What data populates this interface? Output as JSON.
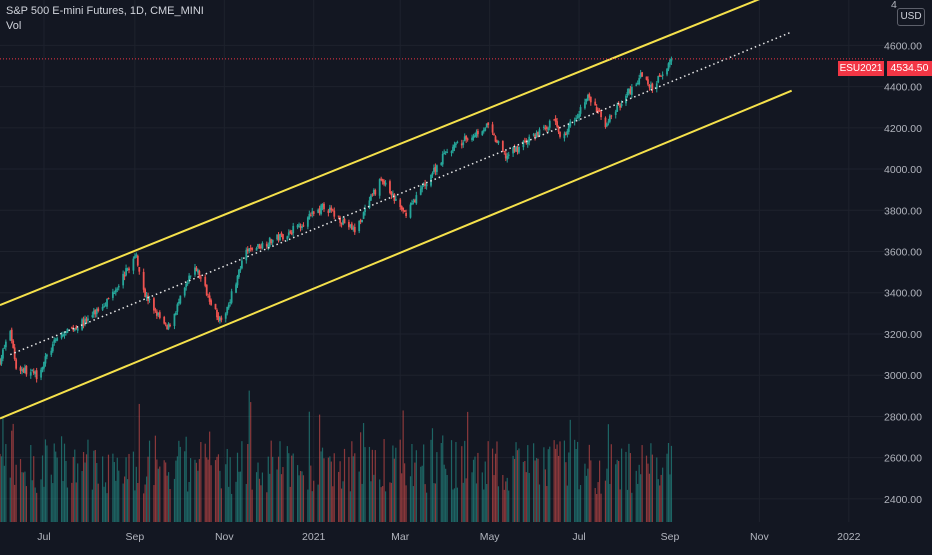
{
  "header": {
    "title": "S&P 500 E-mini Futures, 1D, CME_MINI",
    "indicator": "Vol"
  },
  "currency_label": "USD",
  "price_tags": {
    "symbol": "ESU2021",
    "last": "4534.50"
  },
  "colors": {
    "background": "#131722",
    "up": "#26a69a",
    "down": "#ef5350",
    "channel": "#f5e14b",
    "midline": "#e8e8e8",
    "last_price": "#f23645",
    "axis_text": "#b2b5be"
  },
  "chart_data": {
    "type": "candlestick",
    "y_axis": {
      "ticks": [
        2400,
        2600,
        2800,
        3000,
        3200,
        3400,
        3600,
        3800,
        4000,
        4200,
        4400,
        4600
      ],
      "tick_labels": [
        "2400.00",
        "2600.00",
        "2800.00",
        "3000.00",
        "3200.00",
        "3400.00",
        "3600.00",
        "3800.00",
        "4000.00",
        "4200.00",
        "4400.00",
        "4600.00"
      ],
      "top_label_partial": "4",
      "ylim": [
        2288,
        4820
      ]
    },
    "x_axis": {
      "tick_labels": [
        "Jul",
        "Sep",
        "Nov",
        "2021",
        "Mar",
        "May",
        "Jul",
        "Sep",
        "Nov",
        "2022"
      ],
      "tick_dates": [
        "2020-07-01",
        "2020-09-01",
        "2020-11-01",
        "2021-01-01",
        "2021-03-01",
        "2021-05-01",
        "2021-07-01",
        "2021-09-01",
        "2021-11-01",
        "2022-01-01"
      ],
      "xlim": [
        "2020-06-01",
        "2022-01-25"
      ]
    },
    "last_price": 4534.5,
    "price_path": [
      {
        "date": "2020-06-01",
        "close": 3070
      },
      {
        "date": "2020-06-08",
        "close": 3220
      },
      {
        "date": "2020-06-12",
        "close": 3040
      },
      {
        "date": "2020-06-26",
        "close": 3000
      },
      {
        "date": "2020-07-10",
        "close": 3180
      },
      {
        "date": "2020-07-31",
        "close": 3270
      },
      {
        "date": "2020-08-14",
        "close": 3370
      },
      {
        "date": "2020-09-02",
        "close": 3580
      },
      {
        "date": "2020-09-08",
        "close": 3390
      },
      {
        "date": "2020-09-23",
        "close": 3220
      },
      {
        "date": "2020-10-12",
        "close": 3530
      },
      {
        "date": "2020-10-30",
        "close": 3250
      },
      {
        "date": "2020-11-16",
        "close": 3600
      },
      {
        "date": "2020-12-15",
        "close": 3690
      },
      {
        "date": "2021-01-08",
        "close": 3820
      },
      {
        "date": "2021-01-29",
        "close": 3700
      },
      {
        "date": "2021-02-16",
        "close": 3950
      },
      {
        "date": "2021-03-04",
        "close": 3780
      },
      {
        "date": "2021-04-01",
        "close": 4080
      },
      {
        "date": "2021-04-29",
        "close": 4210
      },
      {
        "date": "2021-05-12",
        "close": 4060
      },
      {
        "date": "2021-06-15",
        "close": 4240
      },
      {
        "date": "2021-06-18",
        "close": 4140
      },
      {
        "date": "2021-07-07",
        "close": 4350
      },
      {
        "date": "2021-07-19",
        "close": 4220
      },
      {
        "date": "2021-08-13",
        "close": 4460
      },
      {
        "date": "2021-08-19",
        "close": 4390
      },
      {
        "date": "2021-09-02",
        "close": 4534.5
      }
    ],
    "channel": {
      "upper": [
        {
          "date": "2020-06-01",
          "value": 3340
        },
        {
          "date": "2021-11-17",
          "value": 4870
        }
      ],
      "middle": [
        {
          "date": "2020-06-08",
          "value": 3100
        },
        {
          "date": "2021-11-23",
          "value": 4665
        }
      ],
      "lower": [
        {
          "date": "2020-06-01",
          "value": 2790
        },
        {
          "date": "2021-11-23",
          "value": 4380
        }
      ]
    }
  }
}
